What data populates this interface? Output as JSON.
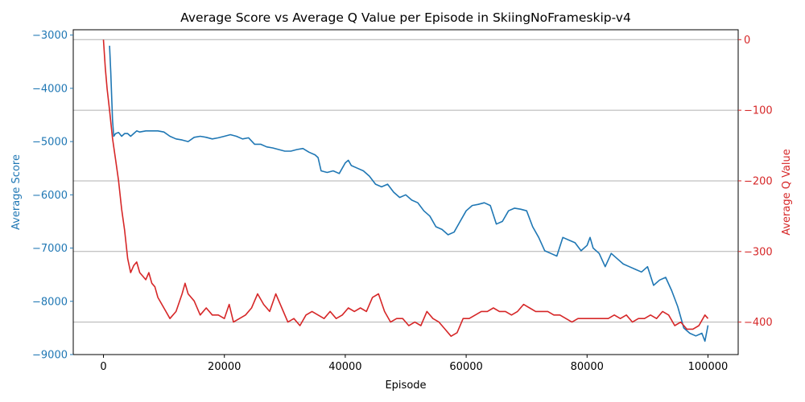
{
  "chart_data": {
    "type": "line",
    "title": "Average Score vs Average Q Value per Episode in SkiingNoFrameskip-v4",
    "xlabel": "Episode",
    "ylabel_left": "Average Score",
    "ylabel_right": "Average Q Value",
    "xlim": [
      -5000,
      105000
    ],
    "ylim_left": [
      -9000,
      -2900
    ],
    "ylim_right": [
      -446,
      14
    ],
    "x_ticks": [
      0,
      20000,
      40000,
      60000,
      80000,
      100000
    ],
    "x_tick_labels": [
      "0",
      "20000",
      "40000",
      "60000",
      "80000",
      "100000"
    ],
    "y_ticks_left": [
      -3000,
      -4000,
      -5000,
      -6000,
      -7000,
      -8000,
      -9000
    ],
    "y_tick_labels_left": [
      "−3000",
      "−4000",
      "−5000",
      "−6000",
      "−7000",
      "−8000",
      "−9000"
    ],
    "y_ticks_right": [
      0,
      -100,
      -200,
      -300,
      -400
    ],
    "y_tick_labels_right": [
      "0",
      "−100",
      "−200",
      "−300",
      "−400"
    ],
    "grid": "horizontal lines at right-axis ticks",
    "colors": {
      "score": "#1f77b4",
      "q_value": "#d62728",
      "axis": "#000000",
      "grid": "#b0b0b0"
    },
    "series": [
      {
        "name": "Average Score",
        "axis": "left",
        "color": "#1f77b4",
        "x": [
          1000,
          1200,
          1500,
          1700,
          2000,
          2500,
          3000,
          3500,
          4000,
          4500,
          5000,
          5500,
          6000,
          7000,
          8000,
          9000,
          10000,
          11000,
          12000,
          13000,
          14000,
          15000,
          16000,
          17000,
          18000,
          19000,
          20000,
          21000,
          22000,
          23000,
          24000,
          25000,
          26000,
          27000,
          28000,
          29000,
          30000,
          31000,
          32000,
          33000,
          34000,
          35000,
          35500,
          36000,
          37000,
          38000,
          39000,
          40000,
          40500,
          41000,
          42000,
          43000,
          44000,
          45000,
          46000,
          47000,
          48000,
          49000,
          50000,
          51000,
          52000,
          53000,
          54000,
          55000,
          56000,
          57000,
          58000,
          59000,
          60000,
          61000,
          62000,
          63000,
          64000,
          65000,
          66000,
          67000,
          68000,
          69000,
          70000,
          71000,
          72000,
          73000,
          74000,
          75000,
          76000,
          77000,
          78000,
          79000,
          80000,
          80500,
          81000,
          82000,
          83000,
          84000,
          85000,
          86000,
          87000,
          88000,
          89000,
          90000,
          91000,
          92000,
          93000,
          94000,
          95000,
          96000,
          97000,
          98000,
          99000,
          99500,
          100000
        ],
        "values": [
          -3200,
          -3700,
          -4600,
          -4900,
          -4850,
          -4830,
          -4900,
          -4850,
          -4850,
          -4900,
          -4850,
          -4800,
          -4820,
          -4800,
          -4800,
          -4800,
          -4820,
          -4900,
          -4950,
          -4970,
          -5000,
          -4920,
          -4900,
          -4920,
          -4950,
          -4930,
          -4900,
          -4870,
          -4900,
          -4950,
          -4930,
          -5050,
          -5050,
          -5100,
          -5120,
          -5150,
          -5180,
          -5180,
          -5150,
          -5130,
          -5200,
          -5250,
          -5300,
          -5550,
          -5580,
          -5550,
          -5600,
          -5400,
          -5350,
          -5450,
          -5500,
          -5550,
          -5650,
          -5800,
          -5850,
          -5800,
          -5950,
          -6050,
          -6000,
          -6100,
          -6150,
          -6300,
          -6400,
          -6600,
          -6650,
          -6750,
          -6700,
          -6500,
          -6300,
          -6200,
          -6180,
          -6150,
          -6200,
          -6550,
          -6500,
          -6300,
          -6250,
          -6270,
          -6300,
          -6600,
          -6800,
          -7050,
          -7100,
          -7150,
          -6800,
          -6850,
          -6900,
          -7050,
          -6950,
          -6800,
          -7000,
          -7100,
          -7350,
          -7100,
          -7200,
          -7300,
          -7350,
          -7400,
          -7450,
          -7350,
          -7700,
          -7600,
          -7550,
          -7800,
          -8100,
          -8500,
          -8600,
          -8650,
          -8600,
          -8750,
          -8450
        ]
      },
      {
        "name": "Average Q Value",
        "axis": "right",
        "color": "#d62728",
        "x": [
          0,
          300,
          600,
          1000,
          1500,
          2000,
          2500,
          3000,
          3500,
          4000,
          4500,
          5000,
          5500,
          6000,
          6500,
          7000,
          7500,
          8000,
          8500,
          9000,
          10000,
          11000,
          12000,
          13000,
          13500,
          14000,
          15000,
          16000,
          17000,
          18000,
          19000,
          20000,
          20800,
          21500,
          22500,
          23500,
          24500,
          25500,
          26500,
          27500,
          28500,
          29500,
          30500,
          31500,
          32500,
          33500,
          34500,
          35500,
          36500,
          37500,
          38500,
          39500,
          40500,
          41500,
          42500,
          43500,
          44500,
          45500,
          46500,
          47500,
          48500,
          49500,
          50500,
          51500,
          52500,
          53500,
          54500,
          55500,
          56500,
          57500,
          58500,
          59500,
          60500,
          61500,
          62500,
          63500,
          64500,
          65500,
          66500,
          67500,
          68500,
          69500,
          70500,
          71500,
          72500,
          73500,
          74500,
          75500,
          76500,
          77500,
          78500,
          79500,
          80500,
          81500,
          82500,
          83500,
          84500,
          85500,
          86500,
          87500,
          88500,
          89500,
          90500,
          91500,
          92500,
          93500,
          94500,
          95500,
          96500,
          97500,
          98500,
          99500,
          100000
        ],
        "values": [
          0,
          -40,
          -70,
          -100,
          -140,
          -170,
          -200,
          -240,
          -270,
          -310,
          -330,
          -320,
          -315,
          -330,
          -335,
          -340,
          -330,
          -345,
          -350,
          -365,
          -380,
          -395,
          -385,
          -360,
          -345,
          -360,
          -370,
          -390,
          -380,
          -390,
          -390,
          -395,
          -375,
          -400,
          -395,
          -390,
          -380,
          -360,
          -375,
          -385,
          -360,
          -380,
          -400,
          -395,
          -405,
          -390,
          -385,
          -390,
          -395,
          -385,
          -395,
          -390,
          -380,
          -385,
          -380,
          -385,
          -365,
          -360,
          -385,
          -400,
          -395,
          -395,
          -405,
          -400,
          -405,
          -385,
          -395,
          -400,
          -410,
          -420,
          -415,
          -395,
          -395,
          -390,
          -385,
          -385,
          -380,
          -385,
          -385,
          -390,
          -385,
          -375,
          -380,
          -385,
          -385,
          -385,
          -390,
          -390,
          -395,
          -400,
          -395,
          -395,
          -395,
          -395,
          -395,
          -395,
          -390,
          -395,
          -390,
          -400,
          -395,
          -395,
          -390,
          -395,
          -385,
          -390,
          -405,
          -400,
          -410,
          -410,
          -405,
          -390,
          -395
        ]
      }
    ]
  }
}
